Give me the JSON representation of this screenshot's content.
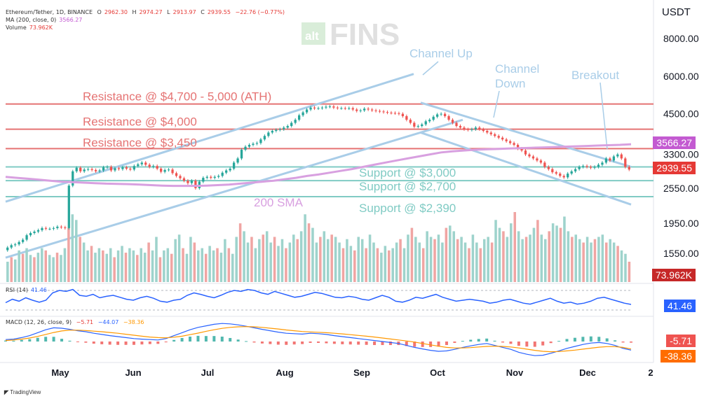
{
  "header": {
    "symbol": "Ethereum/Tether, 1D, BINANCE",
    "o_label": "O",
    "o": "2962.30",
    "h_label": "H",
    "h": "2974.27",
    "l_label": "L",
    "l": "2913.97",
    "c_label": "C",
    "c": "2939.55",
    "chg": "−22.76 (−0.77%)",
    "ma_label": "MA (200, close, 0)",
    "ma_value": "3566.27",
    "vol_label": "Volume",
    "vol_value": "73.962K",
    "rsi_label": "RSI (14)",
    "rsi_value": "41.46",
    "macd_label": "MACD (12, 26, close, 9)",
    "macd_hist": "−5.71",
    "macd_line": "−44.07",
    "macd_signal": "−38.36"
  },
  "currency": "USDT",
  "logo": {
    "alt": "alt",
    "fins": "FINS"
  },
  "footer": "TradingView",
  "tags": {
    "ma": "3566.27",
    "price": "2939.55",
    "volume": "73.962K",
    "rsi": "41.46",
    "macd_hist": "-5.71",
    "macd_signal": "-38.36"
  },
  "colors": {
    "up": "#26a69a",
    "down": "#ef5350",
    "resistance": "#e57373",
    "support": "#80cbc4",
    "channel": "#a9cde8",
    "sma": "#d8a0e0",
    "rsi": "#2962ff",
    "macd": "#2962ff",
    "signal": "#ff9800"
  },
  "chart_data": {
    "type": "candlestick",
    "title": "Ethereum/Tether, 1D, BINANCE",
    "x_tick_labels": [
      "May",
      "Jun",
      "Jul",
      "Aug",
      "Sep",
      "Oct",
      "Nov",
      "Dec",
      "2"
    ],
    "y_tick_labels": [
      "8000.00",
      "6000.00",
      "4500.00",
      "3300.00",
      "2550.00",
      "1950.00",
      "1550.00"
    ],
    "y_scale": "log",
    "price_close_series": [
      1620,
      1650,
      1660,
      1690,
      1720,
      1780,
      1810,
      1830,
      1850,
      1880,
      1870,
      1870,
      1880,
      1900,
      1890,
      1880,
      2600,
      2900,
      2980,
      2900,
      2940,
      2950,
      2930,
      2900,
      2920,
      2990,
      3000,
      2920,
      2970,
      2950,
      2990,
      2960,
      2940,
      3020,
      3060,
      3100,
      3050,
      3000,
      3020,
      2960,
      2890,
      2930,
      2940,
      2860,
      2800,
      2750,
      2700,
      2650,
      2700,
      2550,
      2680,
      2760,
      2780,
      2760,
      2780,
      2800,
      2870,
      2920,
      2960,
      3100,
      3200,
      3420,
      3500,
      3550,
      3580,
      3600,
      3700,
      3800,
      3900,
      3950,
      3980,
      4000,
      4050,
      4100,
      4200,
      4300,
      4450,
      4550,
      4650,
      4720,
      4690,
      4700,
      4720,
      4750,
      4760,
      4720,
      4700,
      4700,
      4690,
      4700,
      4650,
      4600,
      4620,
      4680,
      4650,
      4620,
      4600,
      4580,
      4560,
      4540,
      4530,
      4520,
      4500,
      4420,
      4300,
      4200,
      4080,
      4100,
      4150,
      4250,
      4300,
      4400,
      4480,
      4500,
      4420,
      4300,
      4200,
      4100,
      4050,
      4000,
      3980,
      4000,
      4050,
      4000,
      3950,
      3900,
      3850,
      3800,
      3750,
      3700,
      3650,
      3600,
      3550,
      3450,
      3400,
      3300,
      3250,
      3200,
      3150,
      3100,
      3000,
      2950,
      2880,
      2850,
      2800,
      2770,
      2850,
      2900,
      2950,
      3000,
      3020,
      3000,
      2980,
      3000,
      3050,
      3100,
      3200,
      3150,
      3250,
      3300,
      3200,
      3000,
      2939.55
    ],
    "volume_series": [
      18,
      22,
      20,
      28,
      25,
      30,
      24,
      22,
      26,
      30,
      28,
      24,
      22,
      26,
      24,
      30,
      48,
      60,
      55,
      40,
      35,
      28,
      32,
      26,
      30,
      28,
      25,
      30,
      22,
      28,
      32,
      26,
      30,
      28,
      24,
      30,
      26,
      35,
      28,
      40,
      22,
      28,
      30,
      25,
      38,
      42,
      30,
      25,
      40,
      35,
      28,
      30,
      25,
      32,
      28,
      30,
      26,
      38,
      30,
      25,
      40,
      52,
      45,
      35,
      40,
      30,
      38,
      42,
      45,
      35,
      40,
      32,
      38,
      30,
      35,
      42,
      38,
      45,
      60,
      52,
      48,
      35,
      40,
      45,
      38,
      42,
      40,
      35,
      30,
      38,
      32,
      28,
      40,
      38,
      30,
      42,
      35,
      30,
      26,
      32,
      28,
      30,
      35,
      38,
      30,
      42,
      48,
      40,
      35,
      30,
      45,
      40,
      38,
      42,
      35,
      48,
      50,
      45,
      38,
      40,
      35,
      30,
      42,
      35,
      30,
      38,
      40,
      35,
      55,
      48,
      45,
      40,
      52,
      62,
      45,
      38,
      40,
      42,
      48,
      55,
      42,
      38,
      45,
      52,
      50,
      48,
      58,
      45,
      40,
      42,
      38,
      35,
      40,
      35,
      38,
      40,
      42,
      35,
      38,
      35,
      32,
      28,
      25,
      18
    ],
    "sma_200_series": [
      2780,
      2760,
      2740,
      2720,
      2700,
      2680,
      2670,
      2660,
      2650,
      2640,
      2635,
      2630,
      2620,
      2610,
      2600,
      2595,
      2595,
      2595,
      2600,
      2610,
      2620,
      2640,
      2660,
      2680,
      2700,
      2730,
      2760,
      2800,
      2830,
      2870,
      2910,
      2950,
      3000,
      3050,
      3100,
      3150,
      3200,
      3250,
      3300,
      3350,
      3380,
      3400,
      3420,
      3430,
      3440,
      3450,
      3460,
      3470,
      3480,
      3490,
      3500,
      3510,
      3520,
      3530,
      3540,
      3550,
      3566.27
    ],
    "rsi_series": [
      45,
      52,
      48,
      55,
      50,
      46,
      50,
      65,
      70,
      68,
      72,
      60,
      58,
      62,
      55,
      58,
      60,
      56,
      52,
      50,
      55,
      58,
      54,
      48,
      46,
      50,
      52,
      60,
      65,
      62,
      58,
      55,
      60,
      66,
      70,
      68,
      72,
      70,
      65,
      62,
      68,
      64,
      60,
      56,
      58,
      62,
      66,
      64,
      60,
      56,
      55,
      58,
      56,
      52,
      50,
      55,
      60,
      56,
      48,
      46,
      50,
      56,
      54,
      58,
      62,
      56,
      52,
      48,
      50,
      52,
      50,
      48,
      44,
      46,
      50,
      52,
      48,
      44,
      42,
      46,
      50,
      54,
      48,
      44,
      46,
      42,
      44,
      48,
      54,
      56,
      52,
      48,
      44,
      41.46
    ],
    "macd_line_series": [
      10,
      12,
      20,
      30,
      45,
      60,
      70,
      68,
      62,
      55,
      50,
      42,
      36,
      30,
      25,
      20,
      15,
      12,
      10,
      8,
      15,
      30,
      45,
      60,
      72,
      80,
      88,
      92,
      90,
      85,
      78,
      70,
      62,
      55,
      48,
      42,
      40,
      38,
      42,
      40,
      36,
      30,
      25,
      20,
      15,
      10,
      5,
      0,
      -5,
      -10,
      -20,
      -30,
      -38,
      -45,
      -50,
      -48,
      -40,
      -30,
      -22,
      -15,
      -10,
      -20,
      -30,
      -40,
      -55,
      -65,
      -72,
      -70,
      -60,
      -48,
      -35,
      -25,
      -15,
      -8,
      -5,
      -10,
      -20,
      -35,
      -44.07
    ],
    "macd_signal_series": [
      5,
      8,
      12,
      18,
      26,
      36,
      46,
      54,
      58,
      58,
      56,
      53,
      50,
      46,
      42,
      37,
      32,
      27,
      23,
      20,
      19,
      22,
      27,
      35,
      43,
      52,
      60,
      67,
      72,
      75,
      76,
      75,
      72,
      68,
      64,
      59,
      55,
      51,
      49,
      47,
      45,
      42,
      39,
      35,
      31,
      27,
      23,
      18,
      13,
      8,
      3,
      -3,
      -10,
      -17,
      -24,
      -30,
      -33,
      -33,
      -31,
      -28,
      -25,
      -24,
      -25,
      -28,
      -33,
      -39,
      -45,
      -50,
      -52,
      -51,
      -48,
      -44,
      -39,
      -34,
      -29,
      -26,
      -26,
      -30,
      -38.36
    ],
    "annotations": {
      "resistance_ath": "Resistance @ $4,700 - 5,000 (ATH)",
      "resistance_4000": "Resistance @ $4,000",
      "resistance_3450": "Resistance @ $3,450",
      "support_3000": "Support @ $3,000",
      "support_2700": "Support @ $2,700",
      "support_2390": "Support @ $2,390",
      "sma": "200 SMA",
      "channel_up": "Channel Up",
      "channel_down_1": "Channel",
      "channel_down_2": "Down",
      "breakout": "Breakout"
    },
    "levels": {
      "resistance": [
        4850,
        4000,
        3450
      ],
      "support": [
        3000,
        2700,
        2390
      ]
    }
  }
}
